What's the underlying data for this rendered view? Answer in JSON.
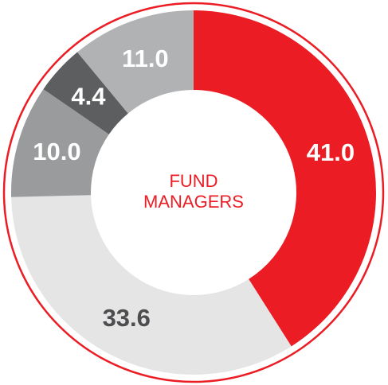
{
  "chart_data": {
    "type": "donut",
    "center_label_lines": [
      "FUND",
      "MANAGERS"
    ],
    "center_label_color": "#ec1c24",
    "categories": [
      null,
      null,
      null,
      null,
      null
    ],
    "values": [
      41.0,
      33.6,
      10.0,
      4.4,
      11.0
    ],
    "value_labels": [
      "41.0",
      "33.6",
      "10.0",
      "4.4",
      "11.0"
    ],
    "colors": [
      "#ec1c24",
      "#e5e5e6",
      "#9a9b9d",
      "#5d5e60",
      "#b1b2b4"
    ],
    "label_colors": [
      "#ffffff",
      "#4d4d4f",
      "#ffffff",
      "#ffffff",
      "#ffffff"
    ],
    "ring_color": "#ec1c24"
  }
}
